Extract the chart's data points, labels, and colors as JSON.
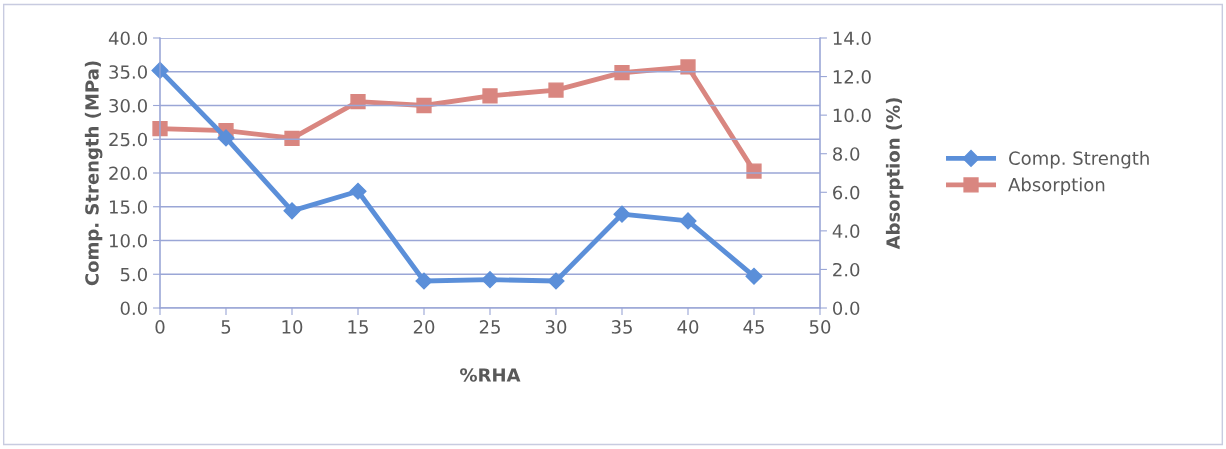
{
  "chart_data": {
    "type": "line",
    "xlabel": "%RHA",
    "ylabel": "Comp. Strength (MPa)",
    "y2label": "Absorption (%)",
    "x": [
      0,
      5,
      10,
      15,
      20,
      25,
      30,
      35,
      40,
      45
    ],
    "series": [
      {
        "name": "Comp. Strength",
        "color": "#5b8fd9",
        "marker": "diamond",
        "values": [
          35.2,
          25.2,
          14.4,
          17.3,
          4.0,
          4.2,
          4.0,
          13.9,
          12.9,
          4.7
        ]
      },
      {
        "name": "Absorption",
        "color": "#d98680",
        "marker": "square",
        "axis": "y2",
        "values": [
          9.3,
          9.2,
          8.8,
          10.7,
          10.5,
          11.0,
          11.3,
          12.2,
          12.5,
          7.1
        ]
      }
    ],
    "xlim": [
      0,
      50
    ],
    "xticks": [
      0,
      5,
      10,
      15,
      20,
      25,
      30,
      35,
      40,
      45,
      50
    ],
    "ylim": [
      0,
      40
    ],
    "yticks": [
      {
        "value": 0,
        "label": "0.0"
      },
      {
        "value": 5,
        "label": "5.0"
      },
      {
        "value": 10,
        "label": "10.0"
      },
      {
        "value": 15,
        "label": "15.0"
      },
      {
        "value": 20,
        "label": "20.0"
      },
      {
        "value": 25,
        "label": "25.0"
      },
      {
        "value": 30,
        "label": "30.0"
      },
      {
        "value": 35,
        "label": "35.0"
      },
      {
        "value": 40,
        "label": "40.0"
      }
    ],
    "y2lim": [
      0,
      14
    ],
    "y2ticks": [
      {
        "value": 0,
        "label": "0.0"
      },
      {
        "value": 2,
        "label": "2.0"
      },
      {
        "value": 4,
        "label": "4.0"
      },
      {
        "value": 6,
        "label": "6.0"
      },
      {
        "value": 8,
        "label": "8.0"
      },
      {
        "value": 10,
        "label": "10.0"
      },
      {
        "value": 12,
        "label": "12.0"
      },
      {
        "value": 14,
        "label": "14.0"
      }
    ],
    "grid": "y",
    "legend": "right"
  }
}
